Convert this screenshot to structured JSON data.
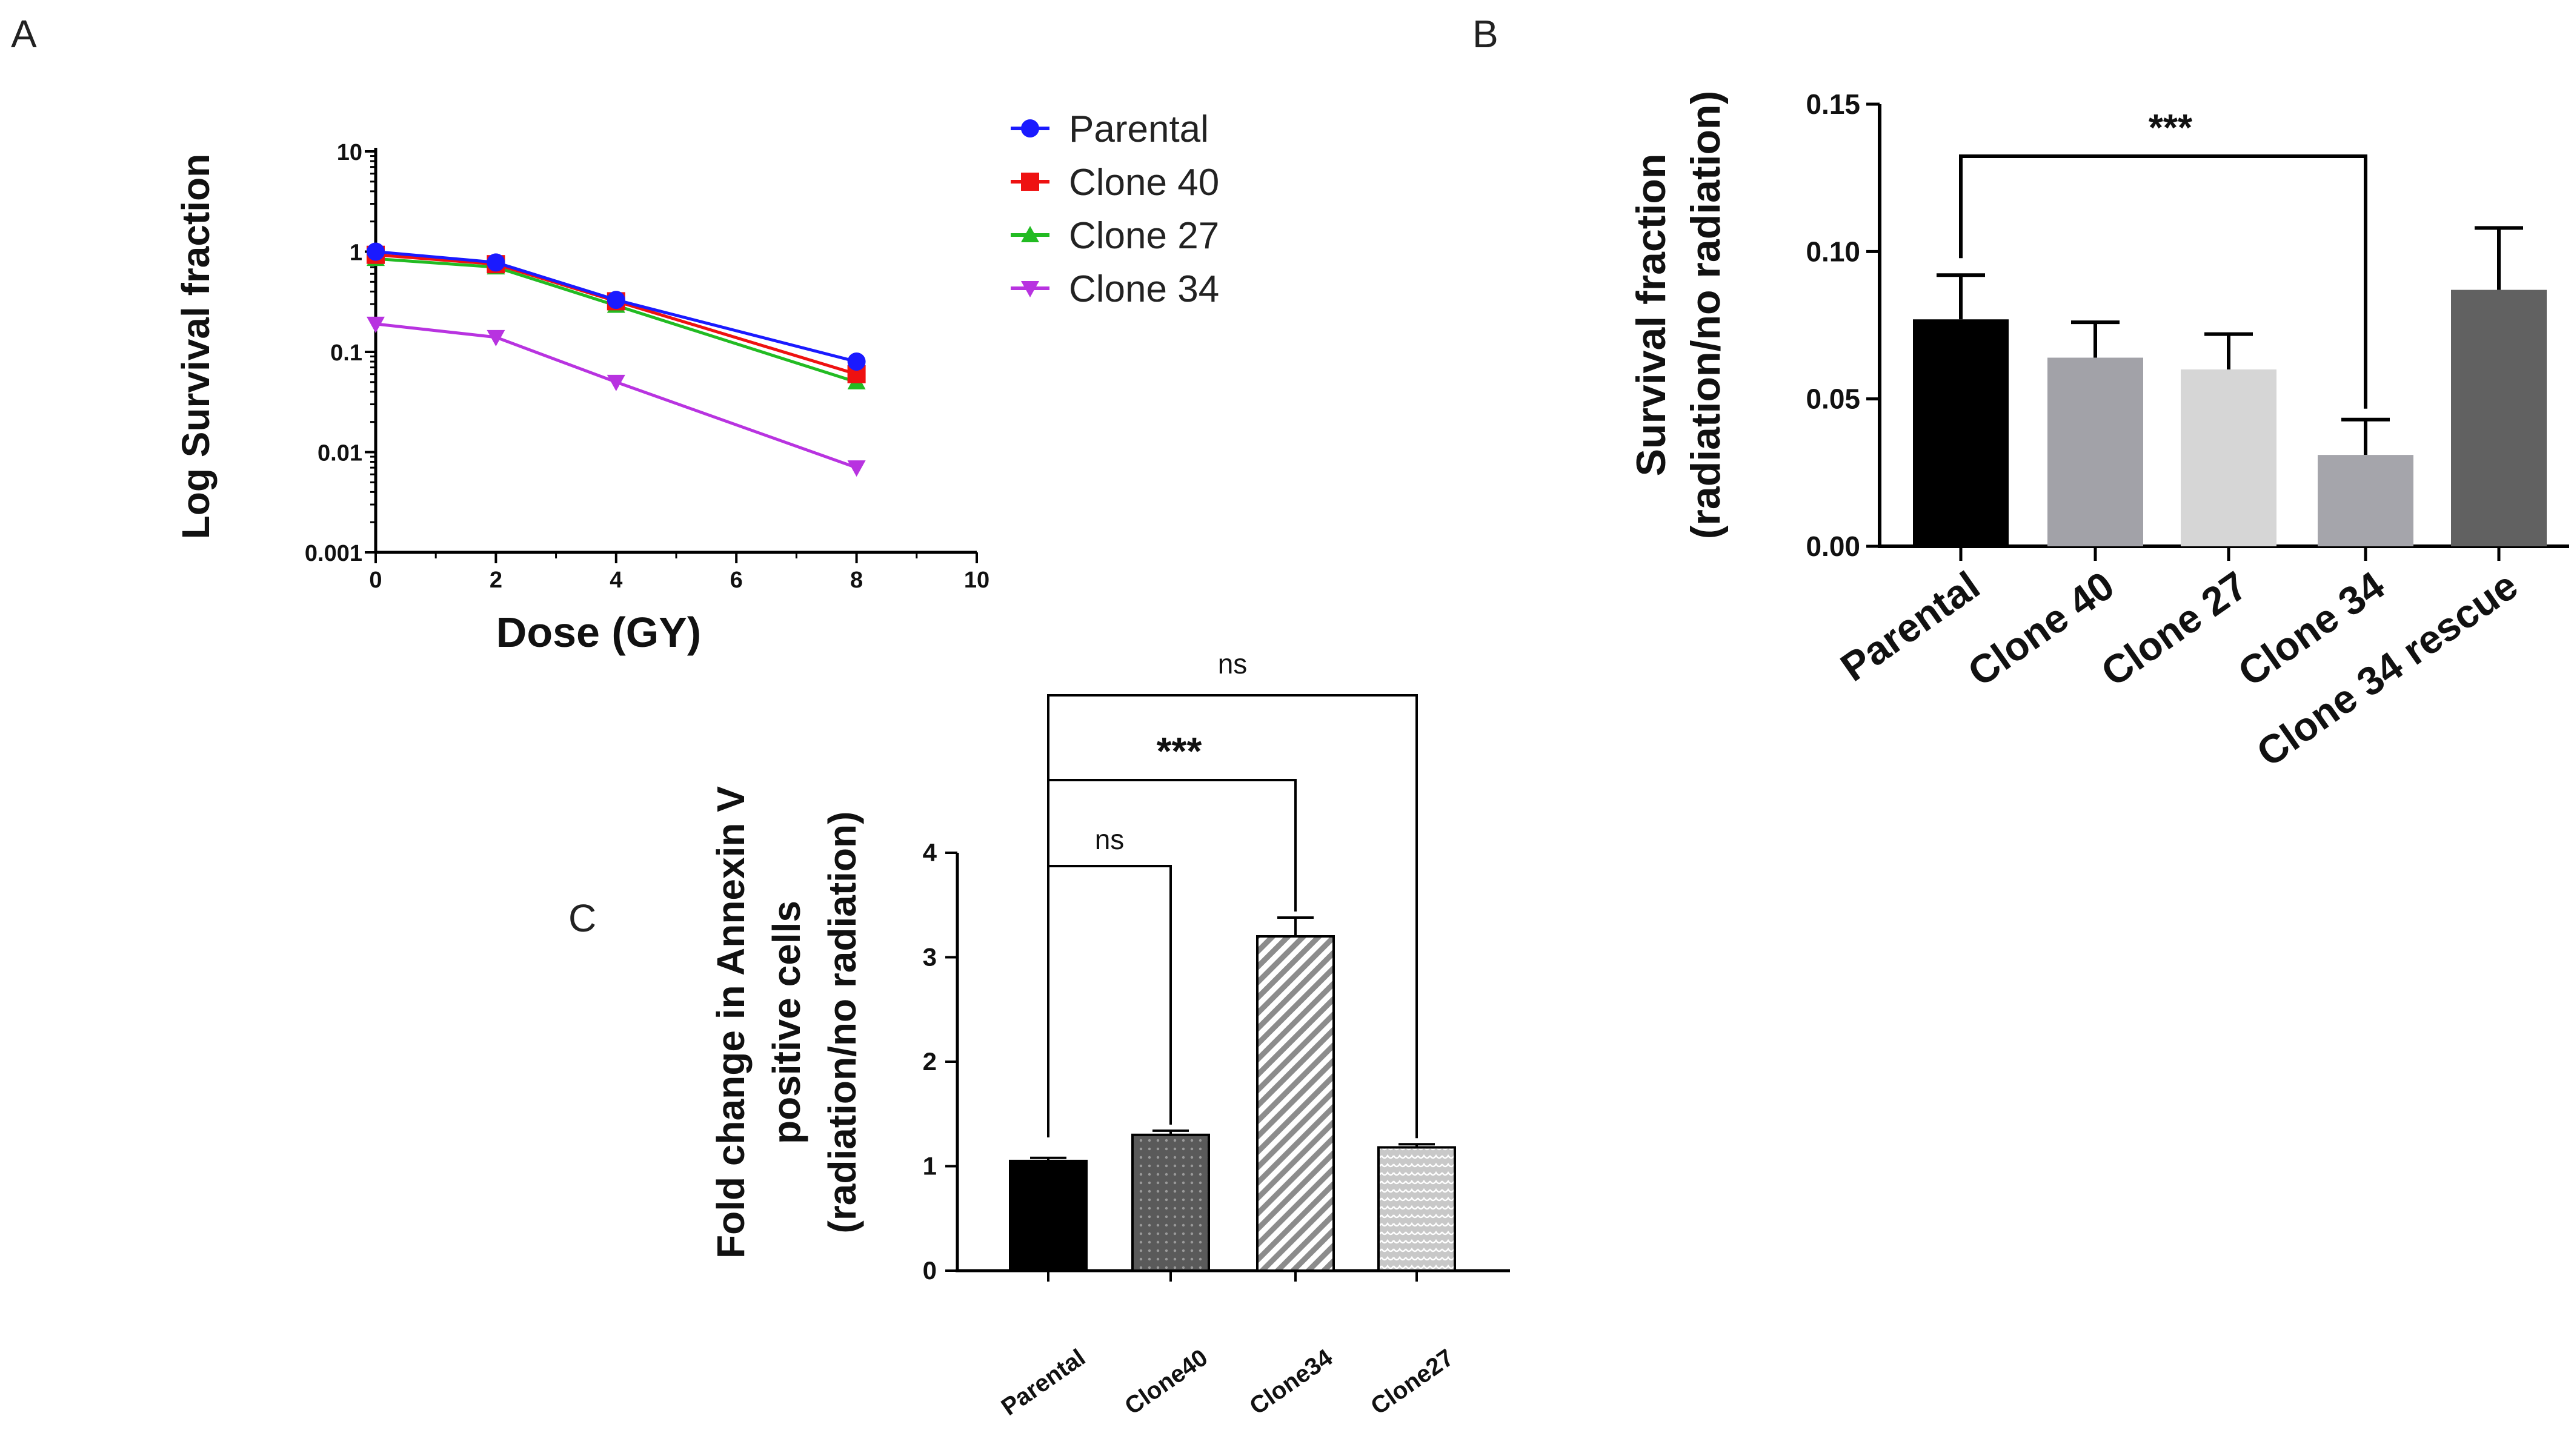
{
  "panels": {
    "a": "A",
    "b": "B",
    "c": "C"
  },
  "chart_data": [
    {
      "id": "A",
      "type": "line",
      "ylabel": "Log Survival fraction",
      "xlabel": "Dose (GY)",
      "yscale": "log",
      "xlim": [
        0,
        10
      ],
      "ylim": [
        0.001,
        10
      ],
      "xticks": [
        "0",
        "2",
        "4",
        "6",
        "8",
        "10"
      ],
      "yticks": [
        "10",
        "1",
        "0.1",
        "0.01",
        "0.001"
      ],
      "x": [
        0,
        2,
        4,
        8
      ],
      "series": [
        {
          "name": "Parental",
          "color": "#1a1aff",
          "marker": "circle",
          "values": [
            1.0,
            0.78,
            0.33,
            0.08
          ]
        },
        {
          "name": "Clone 40",
          "color": "#ee1111",
          "marker": "square",
          "values": [
            0.93,
            0.75,
            0.32,
            0.06
          ]
        },
        {
          "name": "Clone 27",
          "color": "#22bb22",
          "marker": "triangle-up",
          "values": [
            0.85,
            0.7,
            0.29,
            0.05
          ]
        },
        {
          "name": "Clone 34",
          "color": "#b833e0",
          "marker": "triangle-down",
          "values": [
            0.19,
            0.14,
            0.05,
            0.007
          ]
        }
      ]
    },
    {
      "id": "B",
      "type": "bar",
      "ylabel_lines": [
        "Survival fraction",
        "(radiation/no radiation)"
      ],
      "categories": [
        "Parental",
        "Clone 40",
        "Clone 27",
        "Clone 34",
        "Clone 34 rescue"
      ],
      "values": [
        0.077,
        0.064,
        0.06,
        0.031,
        0.087
      ],
      "errors": [
        0.015,
        0.012,
        0.012,
        0.012,
        0.021
      ],
      "colors": [
        "#000000",
        "#a2a2a8",
        "#d6d6d6",
        "#a5a5ab",
        "#616161"
      ],
      "ylim": [
        0,
        0.15
      ],
      "yticks": [
        "0.00",
        "0.05",
        "0.10",
        "0.15"
      ],
      "comparisons": [
        {
          "from": 0,
          "to": 3,
          "label": "***"
        }
      ]
    },
    {
      "id": "C",
      "type": "bar",
      "ylabel_lines": [
        "Fold change in Annexin V",
        "positive cells",
        "(radiation/no radiation)"
      ],
      "categories": [
        "Parental",
        "Clone40",
        "Clone34",
        "Clone27"
      ],
      "values": [
        1.05,
        1.3,
        3.2,
        1.18
      ],
      "errors": [
        0.03,
        0.04,
        0.18,
        0.03
      ],
      "fills": [
        "solid",
        "dots",
        "diagonal",
        "scallop"
      ],
      "ylim": [
        0,
        4
      ],
      "yticks": [
        "0",
        "1",
        "2",
        "3",
        "4"
      ],
      "comparisons": [
        {
          "from": 0,
          "to": 1,
          "label": "ns"
        },
        {
          "from": 0,
          "to": 2,
          "label": "***"
        },
        {
          "from": 0,
          "to": 3,
          "label": "ns"
        }
      ]
    }
  ]
}
